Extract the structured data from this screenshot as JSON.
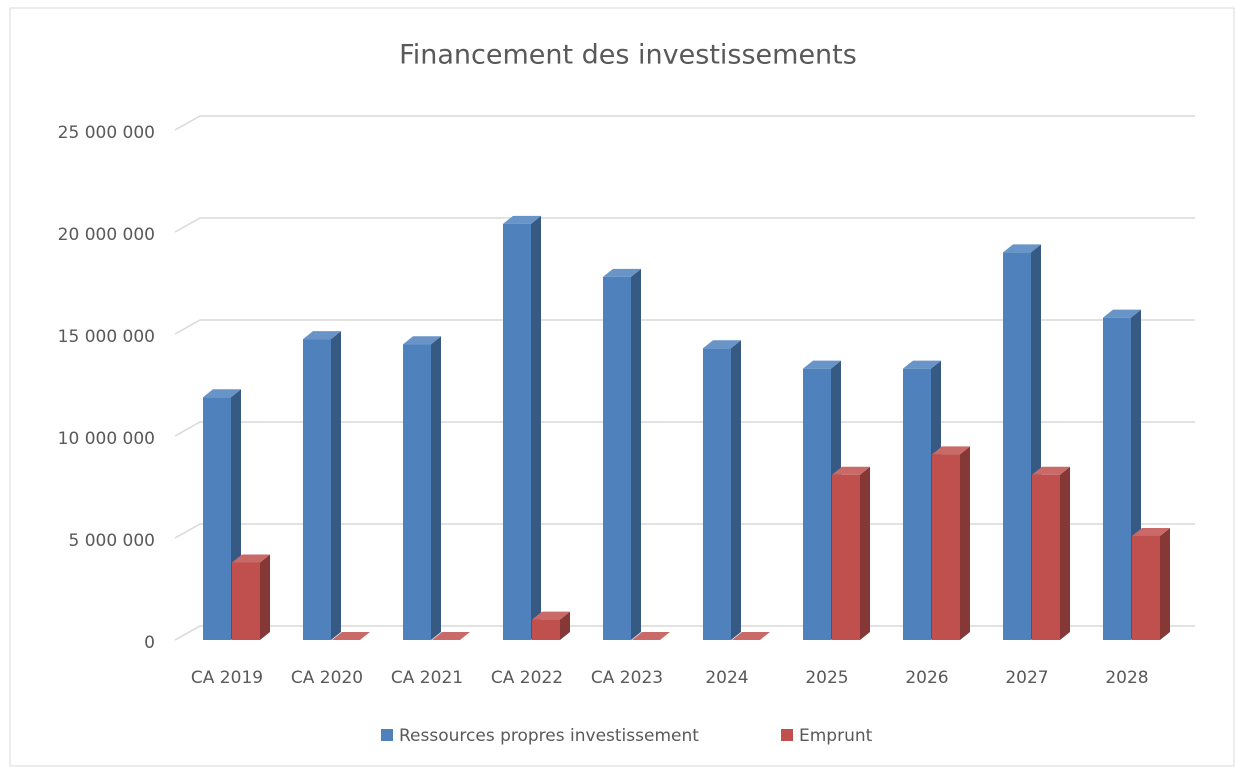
{
  "chart_data": {
    "type": "bar3d",
    "title": "Financement des investissements",
    "categories": [
      "CA 2019",
      "CA 2020",
      "CA 2021",
      "CA 2022",
      "CA 2023",
      "2024",
      "2025",
      "2026",
      "2027",
      "2028"
    ],
    "series": [
      {
        "name": "Ressources propres investissement",
        "color": "#4f81bd",
        "values": [
          11900000,
          14750000,
          14500000,
          20400000,
          17800000,
          14300000,
          13300000,
          13300000,
          19000000,
          15800000
        ]
      },
      {
        "name": "Emprunt",
        "color": "#c0504d",
        "values": [
          3800000,
          0,
          0,
          1000000,
          0,
          0,
          8100000,
          9100000,
          8100000,
          5100000
        ]
      }
    ],
    "ylim": [
      0,
      25000000
    ],
    "yticks": [
      {
        "value": 0,
        "label": "0"
      },
      {
        "value": 5000000,
        "label": "5 000 000"
      },
      {
        "value": 10000000,
        "label": "10 000 000"
      },
      {
        "value": 15000000,
        "label": "15 000 000"
      },
      {
        "value": 20000000,
        "label": "20 000 000"
      },
      {
        "value": 25000000,
        "label": "25 000 000"
      }
    ],
    "grid": true,
    "legend": "bottom"
  }
}
